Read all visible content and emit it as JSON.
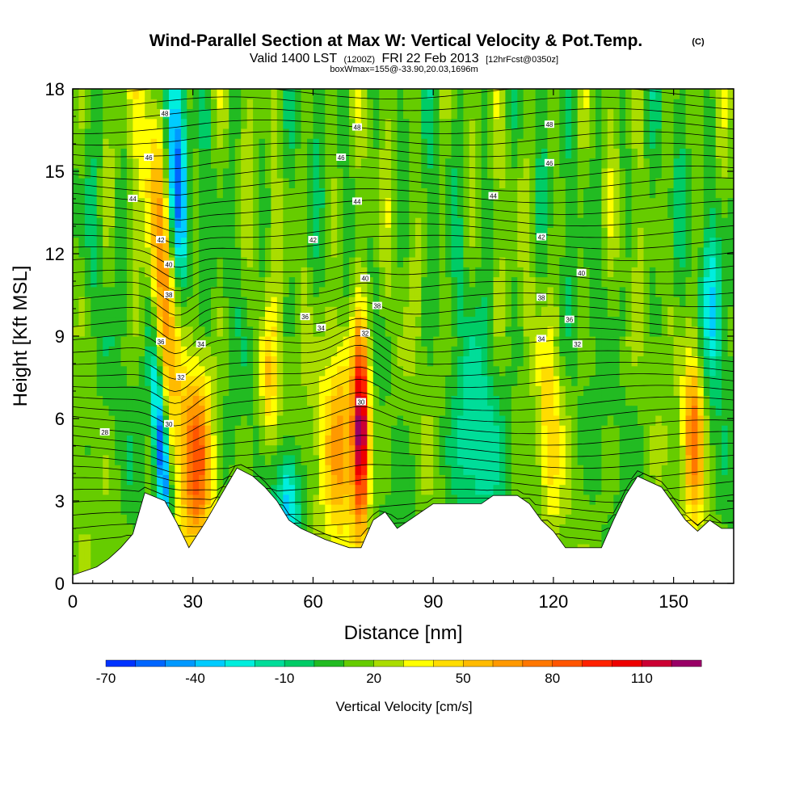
{
  "chart_data": {
    "type": "heatmap",
    "title": "Wind-Parallel Section at Max W: Vertical Velocity & Pot.Temp.",
    "title_mark": "(C)",
    "subtitle_parts": [
      "Valid 1400 LST",
      "(1200Z)",
      "FRI 22 Feb 2013",
      "[12hrFcst@0350z]"
    ],
    "box_info": "boxWmax=155@-33.90,20.03,1696m",
    "xlabel": "Distance [nm]",
    "ylabel": "Height [Kft MSL]",
    "xlim": [
      0,
      165
    ],
    "ylim": [
      0,
      18
    ],
    "xticks": [
      0,
      30,
      60,
      90,
      120,
      150
    ],
    "yticks": [
      0,
      3,
      6,
      9,
      12,
      15,
      18
    ],
    "colorbar": {
      "label": "Vertical Velocity [cm/s]",
      "tick_labels": [
        "-70",
        "-40",
        "-10",
        "20",
        "50",
        "80",
        "110"
      ],
      "levels": [
        -70,
        -60,
        -50,
        -40,
        -30,
        -20,
        -10,
        0,
        10,
        20,
        30,
        40,
        50,
        60,
        70,
        80,
        90,
        100,
        110,
        120,
        130
      ],
      "colors": [
        "#0033ff",
        "#0066ff",
        "#0099ff",
        "#00ccff",
        "#00eedd",
        "#00dd99",
        "#00cc66",
        "#22bb22",
        "#66cc00",
        "#aadd00",
        "#ffff00",
        "#ffdd00",
        "#ffbb00",
        "#ff9900",
        "#ff7700",
        "#ff5500",
        "#ff2200",
        "#ee0000",
        "#cc0033",
        "#990066"
      ]
    },
    "wmax_feature_cm_s": 155,
    "updrafts": [
      {
        "x": 22,
        "z": 12,
        "w": 55
      },
      {
        "x": 31,
        "z": 4.5,
        "w": 75
      },
      {
        "x": 49,
        "z": 7,
        "w": 50
      },
      {
        "x": 67,
        "z": 5.5,
        "w": 60
      },
      {
        "x": 72,
        "z": 5.5,
        "w": 125
      },
      {
        "x": 119,
        "z": 5.5,
        "w": 45
      },
      {
        "x": 155,
        "z": 5.5,
        "w": 75
      }
    ],
    "downdrafts": [
      {
        "x": 22,
        "z": 5,
        "w": -65
      },
      {
        "x": 26,
        "z": 15,
        "w": -45
      },
      {
        "x": 54,
        "z": 3,
        "w": -35
      },
      {
        "x": 100,
        "z": 5,
        "w": -20
      },
      {
        "x": 160,
        "z": 10,
        "w": -25
      }
    ],
    "terrain_kft": [
      {
        "x": 0,
        "z": 0.3
      },
      {
        "x": 6,
        "z": 0.6
      },
      {
        "x": 9,
        "z": 0.9
      },
      {
        "x": 12,
        "z": 1.3
      },
      {
        "x": 15,
        "z": 1.8
      },
      {
        "x": 18,
        "z": 3.3
      },
      {
        "x": 23,
        "z": 3.0
      },
      {
        "x": 26,
        "z": 2.2
      },
      {
        "x": 29,
        "z": 1.3
      },
      {
        "x": 33,
        "z": 2.2
      },
      {
        "x": 37,
        "z": 3.2
      },
      {
        "x": 41,
        "z": 4.2
      },
      {
        "x": 45,
        "z": 3.9
      },
      {
        "x": 48,
        "z": 3.5
      },
      {
        "x": 51,
        "z": 3.0
      },
      {
        "x": 54,
        "z": 2.3
      },
      {
        "x": 57,
        "z": 2.0
      },
      {
        "x": 63,
        "z": 1.6
      },
      {
        "x": 69,
        "z": 1.3
      },
      {
        "x": 72,
        "z": 1.3
      },
      {
        "x": 75,
        "z": 2.3
      },
      {
        "x": 78,
        "z": 2.6
      },
      {
        "x": 81,
        "z": 2.0
      },
      {
        "x": 84,
        "z": 2.3
      },
      {
        "x": 87,
        "z": 2.6
      },
      {
        "x": 90,
        "z": 2.9
      },
      {
        "x": 102,
        "z": 2.9
      },
      {
        "x": 105,
        "z": 3.2
      },
      {
        "x": 111,
        "z": 3.2
      },
      {
        "x": 114,
        "z": 2.9
      },
      {
        "x": 117,
        "z": 2.3
      },
      {
        "x": 120,
        "z": 1.9
      },
      {
        "x": 123,
        "z": 1.3
      },
      {
        "x": 132,
        "z": 1.3
      },
      {
        "x": 135,
        "z": 2.3
      },
      {
        "x": 138,
        "z": 3.2
      },
      {
        "x": 141,
        "z": 3.9
      },
      {
        "x": 147,
        "z": 3.5
      },
      {
        "x": 150,
        "z": 2.9
      },
      {
        "x": 153,
        "z": 2.3
      },
      {
        "x": 156,
        "z": 1.9
      },
      {
        "x": 159,
        "z": 2.3
      },
      {
        "x": 162,
        "z": 2.0
      },
      {
        "x": 165,
        "z": 2.0
      }
    ],
    "theta_contours": {
      "label": "Pot.Temp.",
      "labels": [
        {
          "text": "48",
          "x": 23,
          "z": 17.1
        },
        {
          "text": "46",
          "x": 19,
          "z": 15.5
        },
        {
          "text": "44",
          "x": 15,
          "z": 14.0
        },
        {
          "text": "42",
          "x": 22,
          "z": 12.5
        },
        {
          "text": "40",
          "x": 24,
          "z": 11.6
        },
        {
          "text": "38",
          "x": 24,
          "z": 10.5
        },
        {
          "text": "36",
          "x": 22,
          "z": 8.8
        },
        {
          "text": "34",
          "x": 32,
          "z": 8.7
        },
        {
          "text": "32",
          "x": 27,
          "z": 7.5
        },
        {
          "text": "30",
          "x": 24,
          "z": 5.8
        },
        {
          "text": "28",
          "x": 8,
          "z": 5.5
        },
        {
          "text": "48",
          "x": 71,
          "z": 16.6
        },
        {
          "text": "46",
          "x": 67,
          "z": 15.5
        },
        {
          "text": "44",
          "x": 71,
          "z": 13.9
        },
        {
          "text": "42",
          "x": 60,
          "z": 12.5
        },
        {
          "text": "40",
          "x": 73,
          "z": 11.1
        },
        {
          "text": "38",
          "x": 76,
          "z": 10.1
        },
        {
          "text": "36",
          "x": 58,
          "z": 9.7
        },
        {
          "text": "34",
          "x": 62,
          "z": 9.3
        },
        {
          "text": "32",
          "x": 73,
          "z": 9.1
        },
        {
          "text": "30",
          "x": 72,
          "z": 6.6
        },
        {
          "text": "48",
          "x": 119,
          "z": 16.7
        },
        {
          "text": "46",
          "x": 119,
          "z": 15.3
        },
        {
          "text": "44",
          "x": 105,
          "z": 14.1
        },
        {
          "text": "42",
          "x": 117,
          "z": 12.6
        },
        {
          "text": "40",
          "x": 127,
          "z": 11.3
        },
        {
          "text": "38",
          "x": 117,
          "z": 10.4
        },
        {
          "text": "36",
          "x": 124,
          "z": 9.6
        },
        {
          "text": "34",
          "x": 117,
          "z": 8.9
        },
        {
          "text": "32",
          "x": 126,
          "z": 8.7
        }
      ]
    }
  }
}
